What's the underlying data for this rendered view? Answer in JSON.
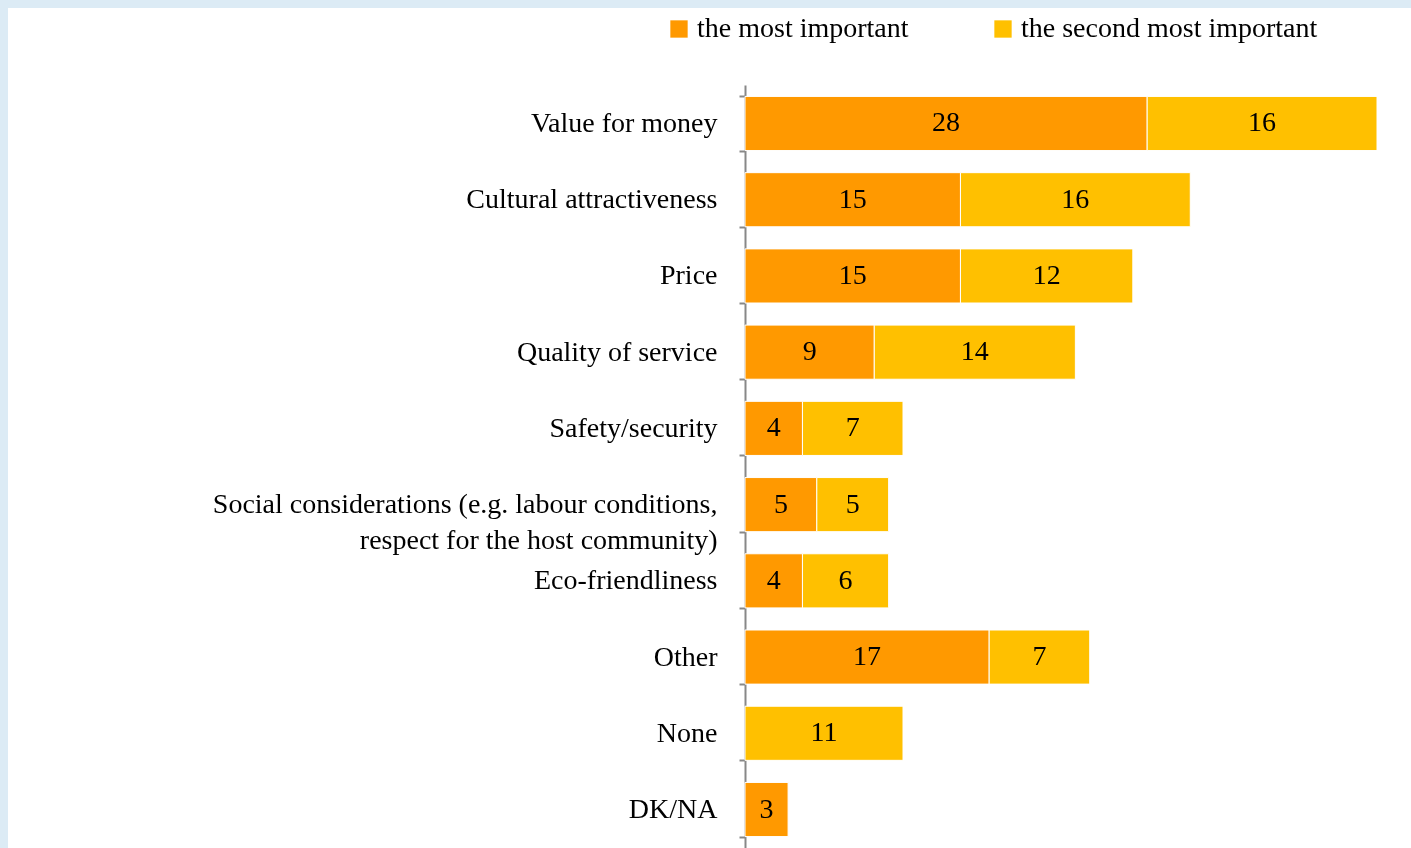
{
  "chart_data": {
    "type": "bar",
    "orientation": "horizontal",
    "stacked": true,
    "data_labels": true,
    "legend": "top",
    "tick_labels": "y",
    "categories": [
      "Value for money",
      "Cultural attractiveness",
      "Price",
      "Quality of service",
      "Safety/security",
      "Social considerations (e.g. labour conditions, respect for the host community)",
      "Eco-friendliness",
      "Other",
      "None",
      "DK/NA"
    ],
    "series": [
      {
        "name": "the most important",
        "color": "#ff9900",
        "values": [
          28,
          15,
          15,
          9,
          4,
          5,
          4,
          17,
          null,
          3
        ]
      },
      {
        "name": "the second most important",
        "color": "#ffc000",
        "values": [
          16,
          16,
          12,
          14,
          7,
          5,
          6,
          7,
          11,
          null
        ]
      }
    ]
  }
}
